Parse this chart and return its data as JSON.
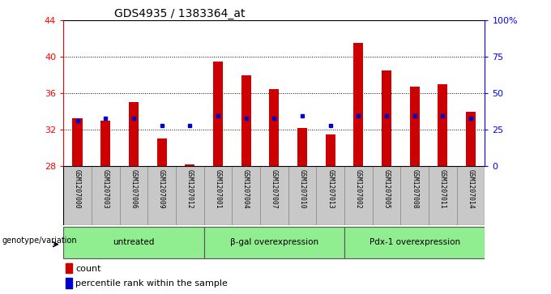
{
  "title": "GDS4935 / 1383364_at",
  "samples": [
    "GSM1207000",
    "GSM1207003",
    "GSM1207006",
    "GSM1207009",
    "GSM1207012",
    "GSM1207001",
    "GSM1207004",
    "GSM1207007",
    "GSM1207010",
    "GSM1207013",
    "GSM1207002",
    "GSM1207005",
    "GSM1207008",
    "GSM1207011",
    "GSM1207014"
  ],
  "counts": [
    33.3,
    33.0,
    35.0,
    31.0,
    28.2,
    39.5,
    38.0,
    36.5,
    32.2,
    31.5,
    41.5,
    38.5,
    36.7,
    37.0,
    34.0
  ],
  "percentile_values": [
    33.0,
    33.3,
    33.3,
    32.5,
    32.5,
    33.5,
    33.3,
    33.3,
    33.5,
    32.5,
    33.5,
    33.5,
    33.5,
    33.5,
    33.3
  ],
  "ymin": 28,
  "ymax": 44,
  "yticks": [
    28,
    32,
    36,
    40,
    44
  ],
  "groups": [
    {
      "label": "untreated",
      "start": 0,
      "end": 5
    },
    {
      "label": "β-gal overexpression",
      "start": 5,
      "end": 10
    },
    {
      "label": "Pdx-1 overexpression",
      "start": 10,
      "end": 15
    }
  ],
  "bar_color": "#CC0000",
  "blue_color": "#0000CC",
  "group_bg_color": "#90EE90",
  "xticklabel_bg": "#C8C8C8",
  "right_yticks": [
    0,
    25,
    50,
    75,
    100
  ],
  "right_yticklabels": [
    "0",
    "25",
    "50",
    "75",
    "100%"
  ],
  "count_label": "count",
  "percentile_label": "percentile rank within the sample",
  "genotype_label": "genotype/variation"
}
